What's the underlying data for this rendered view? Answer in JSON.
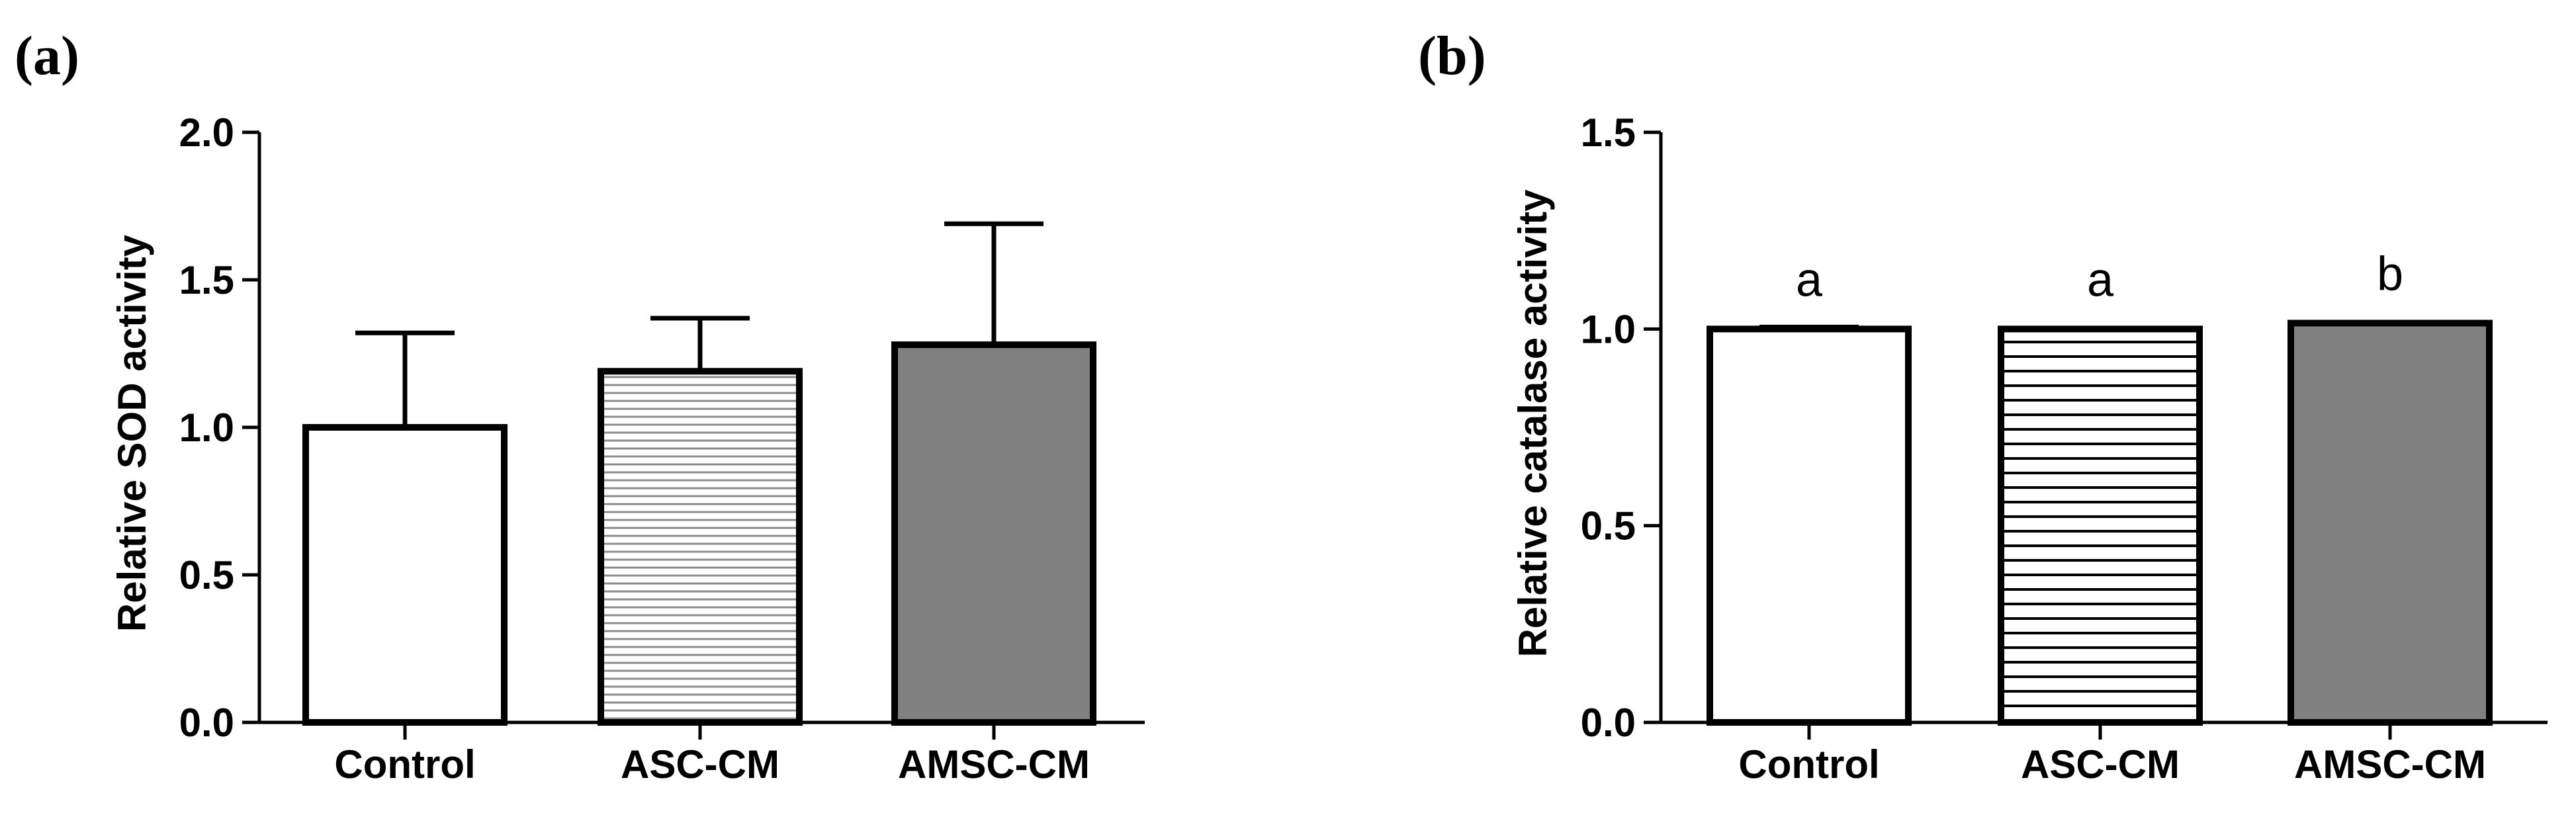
{
  "chart_data": [
    {
      "panel": "(a)",
      "type": "bar",
      "ylabel": "Relative SOD activity",
      "xlabel": "",
      "ylim": [
        0,
        2.0
      ],
      "ytick_labels": [
        "0.0",
        "0.5",
        "1.0",
        "1.5",
        "2.0"
      ],
      "categories": [
        "Control",
        "ASC-CM",
        "AMSC-CM"
      ],
      "values": [
        1.0,
        1.19,
        1.28
      ],
      "errors": [
        0.32,
        0.18,
        0.41
      ],
      "fills": [
        "white",
        "hatch-light",
        "gray"
      ],
      "significance": []
    },
    {
      "panel": "(b)",
      "type": "bar",
      "ylabel": "Relative catalase activity",
      "xlabel": "",
      "ylim": [
        0,
        1.5
      ],
      "ytick_labels": [
        "0.0",
        "0.5",
        "1.0",
        "1.5"
      ],
      "categories": [
        "Control",
        "ASC-CM",
        "AMSC-CM"
      ],
      "values": [
        1.0,
        1.0,
        1.015
      ],
      "errors": [
        0.005,
        0.0,
        0.0
      ],
      "fills": [
        "white",
        "hatch-dark",
        "gray"
      ],
      "significance": [
        "a",
        "a",
        "b"
      ]
    }
  ],
  "colors": {
    "axis": "#000000",
    "bar_edge": "#000000",
    "gray_fill": "#808080",
    "hatch_light": "#8c8c8c",
    "hatch_dark": "#000000"
  }
}
